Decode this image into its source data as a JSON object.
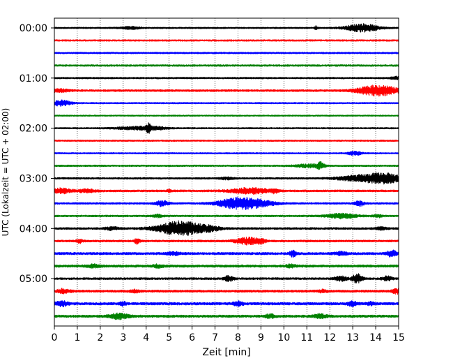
{
  "chart_data": {
    "type": "line",
    "title": "",
    "xlabel": "Zeit  [min]",
    "ylabel": "UTC (Lokalzeit = UTC + 02:00)",
    "xlim": [
      0,
      15
    ],
    "x_ticks": [
      "0",
      "1",
      "2",
      "3",
      "4",
      "5",
      "6",
      "7",
      "8",
      "9",
      "10",
      "11",
      "12",
      "13",
      "14",
      "15"
    ],
    "y_ticks": [
      "00:00",
      "01:00",
      "02:00",
      "03:00",
      "04:00",
      "05:00"
    ],
    "grid": "vertical dotted lines at each minute",
    "minutes_per_line": 15,
    "colors": [
      "#000000",
      "#ff0000",
      "#0000ff",
      "#008000"
    ],
    "series": [
      {
        "start": "00:00",
        "color": "#000000",
        "noise": 0.18,
        "events": [
          {
            "t": 3.3,
            "amp": 0.3,
            "dur": 0.3
          },
          {
            "t": 11.4,
            "amp": 0.45,
            "dur": 0.05
          },
          {
            "t": 13.4,
            "amp": 1.0,
            "dur": 0.5
          }
        ]
      },
      {
        "start": "00:15",
        "color": "#ff0000",
        "noise": 0.2,
        "events": []
      },
      {
        "start": "00:30",
        "color": "#0000ff",
        "noise": 0.2,
        "events": []
      },
      {
        "start": "00:45",
        "color": "#008000",
        "noise": 0.22,
        "events": []
      },
      {
        "start": "01:00",
        "color": "#000000",
        "noise": 0.2,
        "events": [
          {
            "t": 14.9,
            "amp": 0.4,
            "dur": 0.15
          }
        ]
      },
      {
        "start": "01:15",
        "color": "#ff0000",
        "noise": 0.25,
        "events": [
          {
            "t": 0.25,
            "amp": 0.35,
            "dur": 0.25
          },
          {
            "t": 14.1,
            "amp": 1.3,
            "dur": 0.6
          }
        ]
      },
      {
        "start": "01:30",
        "color": "#0000ff",
        "noise": 0.18,
        "events": [
          {
            "t": 0.3,
            "amp": 0.7,
            "dur": 0.3
          }
        ]
      },
      {
        "start": "01:45",
        "color": "#008000",
        "noise": 0.16,
        "events": []
      },
      {
        "start": "02:00",
        "color": "#000000",
        "noise": 0.18,
        "events": [
          {
            "t": 3.5,
            "amp": 0.35,
            "dur": 0.6
          },
          {
            "t": 4.1,
            "amp": 0.9,
            "dur": 0.06
          },
          {
            "t": 4.4,
            "amp": 0.3,
            "dur": 0.4
          }
        ]
      },
      {
        "start": "02:15",
        "color": "#ff0000",
        "noise": 0.18,
        "events": []
      },
      {
        "start": "02:30",
        "color": "#0000ff",
        "noise": 0.18,
        "events": [
          {
            "t": 13.1,
            "amp": 0.5,
            "dur": 0.2
          }
        ]
      },
      {
        "start": "02:45",
        "color": "#008000",
        "noise": 0.2,
        "events": [
          {
            "t": 11.1,
            "amp": 0.4,
            "dur": 0.4
          },
          {
            "t": 11.6,
            "amp": 0.7,
            "dur": 0.12
          }
        ]
      },
      {
        "start": "03:00",
        "color": "#000000",
        "noise": 0.22,
        "events": [
          {
            "t": 7.5,
            "amp": 0.25,
            "dur": 0.2
          },
          {
            "t": 13.0,
            "amp": 0.55,
            "dur": 0.5
          },
          {
            "t": 14.3,
            "amp": 1.3,
            "dur": 0.6
          }
        ]
      },
      {
        "start": "03:15",
        "color": "#ff0000",
        "noise": 0.25,
        "events": [
          {
            "t": 0.3,
            "amp": 0.6,
            "dur": 0.3
          },
          {
            "t": 1.4,
            "amp": 0.35,
            "dur": 0.3
          },
          {
            "t": 5.0,
            "amp": 0.3,
            "dur": 0.06
          },
          {
            "t": 8.5,
            "amp": 0.7,
            "dur": 0.6
          },
          {
            "t": 9.6,
            "amp": 0.45,
            "dur": 0.1
          }
        ]
      },
      {
        "start": "03:30",
        "color": "#0000ff",
        "noise": 0.22,
        "events": [
          {
            "t": 4.7,
            "amp": 0.7,
            "dur": 0.2
          },
          {
            "t": 8.0,
            "amp": 1.4,
            "dur": 0.6
          },
          {
            "t": 9.0,
            "amp": 0.6,
            "dur": 0.5
          },
          {
            "t": 13.3,
            "amp": 0.6,
            "dur": 0.15
          }
        ]
      },
      {
        "start": "03:45",
        "color": "#008000",
        "noise": 0.22,
        "events": [
          {
            "t": 4.5,
            "amp": 0.35,
            "dur": 0.15
          },
          {
            "t": 12.5,
            "amp": 0.6,
            "dur": 0.45
          },
          {
            "t": 14.1,
            "amp": 0.3,
            "dur": 0.15
          }
        ]
      },
      {
        "start": "04:00",
        "color": "#000000",
        "noise": 0.25,
        "events": [
          {
            "t": 2.5,
            "amp": 0.35,
            "dur": 0.2
          },
          {
            "t": 5.5,
            "amp": 1.8,
            "dur": 0.7
          },
          {
            "t": 6.8,
            "amp": 0.45,
            "dur": 0.3
          },
          {
            "t": 14.2,
            "amp": 0.3,
            "dur": 0.2
          }
        ]
      },
      {
        "start": "04:15",
        "color": "#ff0000",
        "noise": 0.25,
        "events": [
          {
            "t": 1.1,
            "amp": 0.45,
            "dur": 0.1
          },
          {
            "t": 3.6,
            "amp": 0.65,
            "dur": 0.08
          },
          {
            "t": 8.4,
            "amp": 0.9,
            "dur": 0.35
          },
          {
            "t": 9.0,
            "amp": 0.45,
            "dur": 0.15
          }
        ]
      },
      {
        "start": "04:30",
        "color": "#0000ff",
        "noise": 0.3,
        "events": [
          {
            "t": 5.2,
            "amp": 0.35,
            "dur": 0.2
          },
          {
            "t": 10.4,
            "amp": 0.75,
            "dur": 0.1
          },
          {
            "t": 12.5,
            "amp": 0.35,
            "dur": 0.2
          },
          {
            "t": 14.7,
            "amp": 0.75,
            "dur": 0.15
          }
        ]
      },
      {
        "start": "04:45",
        "color": "#008000",
        "noise": 0.3,
        "events": [
          {
            "t": 1.7,
            "amp": 0.35,
            "dur": 0.2
          },
          {
            "t": 4.5,
            "amp": 0.35,
            "dur": 0.15
          },
          {
            "t": 10.3,
            "amp": 0.35,
            "dur": 0.15
          }
        ]
      },
      {
        "start": "05:00",
        "color": "#000000",
        "noise": 0.25,
        "events": [
          {
            "t": 7.6,
            "amp": 0.65,
            "dur": 0.15
          },
          {
            "t": 12.5,
            "amp": 0.5,
            "dur": 0.2
          },
          {
            "t": 13.2,
            "amp": 1.2,
            "dur": 0.15
          },
          {
            "t": 14.5,
            "amp": 0.55,
            "dur": 0.15
          }
        ]
      },
      {
        "start": "05:15",
        "color": "#ff0000",
        "noise": 0.28,
        "events": [
          {
            "t": 0.4,
            "amp": 0.5,
            "dur": 0.2
          },
          {
            "t": 3.5,
            "amp": 0.3,
            "dur": 0.15
          },
          {
            "t": 11.7,
            "amp": 0.3,
            "dur": 0.15
          },
          {
            "t": 14.9,
            "amp": 0.65,
            "dur": 0.12
          }
        ]
      },
      {
        "start": "05:30",
        "color": "#0000ff",
        "noise": 0.32,
        "events": [
          {
            "t": 0.3,
            "amp": 0.6,
            "dur": 0.2
          },
          {
            "t": 3.0,
            "amp": 0.45,
            "dur": 0.1
          },
          {
            "t": 8.0,
            "amp": 0.55,
            "dur": 0.15
          },
          {
            "t": 13.0,
            "amp": 0.55,
            "dur": 0.15
          },
          {
            "t": 13.8,
            "amp": 0.4,
            "dur": 0.12
          }
        ]
      },
      {
        "start": "05:45",
        "color": "#008000",
        "noise": 0.3,
        "events": [
          {
            "t": 2.8,
            "amp": 0.65,
            "dur": 0.3
          },
          {
            "t": 9.4,
            "amp": 0.45,
            "dur": 0.15
          },
          {
            "t": 11.6,
            "amp": 0.5,
            "dur": 0.2
          }
        ]
      }
    ]
  }
}
